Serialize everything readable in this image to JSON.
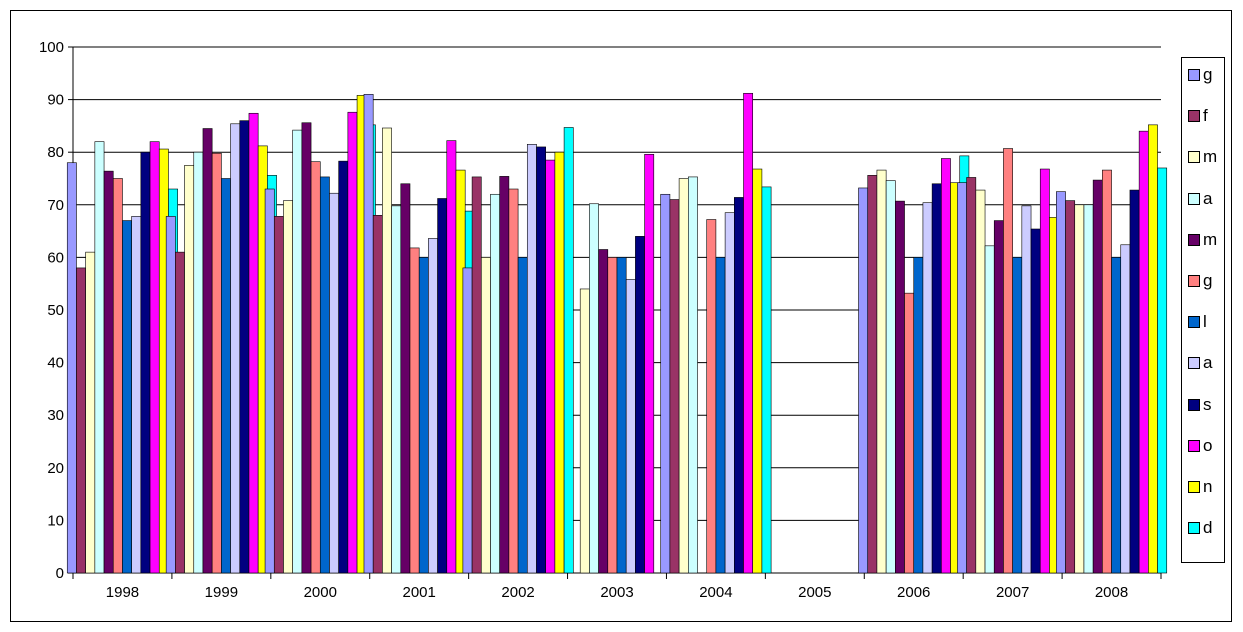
{
  "chart_data": {
    "type": "bar",
    "title": "",
    "xlabel": "",
    "ylabel": "",
    "ylim": [
      0,
      100
    ],
    "yticks": [
      "0",
      "10",
      "20",
      "30",
      "40",
      "50",
      "60",
      "70",
      "80",
      "90",
      "100"
    ],
    "grid": true,
    "legend_position": "right",
    "categories": [
      "1998",
      "1999",
      "2000",
      "2001",
      "2002",
      "2003",
      "2004",
      "2005",
      "2006",
      "2007",
      "2008"
    ],
    "series": [
      {
        "name": "g",
        "color": "#9999FF",
        "values": [
          78,
          67.8,
          73,
          91,
          58,
          null,
          72,
          null,
          73.2,
          74.2,
          72.5
        ]
      },
      {
        "name": "f",
        "color": "#993366",
        "values": [
          58,
          61,
          67.8,
          68,
          75.3,
          null,
          71,
          null,
          75.6,
          75.2,
          70.8
        ]
      },
      {
        "name": "m",
        "color": "#FFFFCC",
        "values": [
          61,
          77.5,
          70.8,
          84.6,
          60,
          54,
          75,
          null,
          76.6,
          72.8,
          70
        ]
      },
      {
        "name": "a",
        "color": "#CCFFFF",
        "values": [
          82,
          80,
          84.2,
          69.8,
          72,
          70.2,
          75.3,
          null,
          74.6,
          62.2,
          70
        ]
      },
      {
        "name": "m",
        "color": "#660066",
        "values": [
          76.4,
          84.5,
          85.6,
          74,
          75.4,
          61.5,
          null,
          null,
          70.7,
          67,
          74.7
        ]
      },
      {
        "name": "g",
        "color": "#FF8080",
        "values": [
          75,
          79.8,
          78.2,
          61.8,
          73,
          60,
          67.2,
          null,
          53.2,
          80.7,
          76.6
        ]
      },
      {
        "name": "l",
        "color": "#0066CC",
        "values": [
          67,
          75,
          75.3,
          60,
          60,
          60,
          60,
          null,
          60,
          60,
          60
        ]
      },
      {
        "name": "a",
        "color": "#CCCCFF",
        "values": [
          67.8,
          85.4,
          72.2,
          63.6,
          81.5,
          55.8,
          68.5,
          null,
          70.4,
          69.8,
          62.4
        ]
      },
      {
        "name": "s",
        "color": "#000080",
        "values": [
          80,
          86,
          78.3,
          71.2,
          81,
          64,
          71.4,
          null,
          74,
          65.4,
          72.8
        ]
      },
      {
        "name": "o",
        "color": "#FF00FF",
        "values": [
          82,
          87.4,
          87.6,
          82.2,
          78.5,
          79.6,
          91.2,
          null,
          78.8,
          76.8,
          84
        ]
      },
      {
        "name": "n",
        "color": "#FFFF00",
        "values": [
          80.6,
          81.2,
          90.8,
          76.6,
          80,
          null,
          76.8,
          null,
          74.2,
          67.6,
          85.2
        ]
      },
      {
        "name": "d",
        "color": "#00FFFF",
        "values": [
          73,
          75.6,
          85.2,
          68.8,
          84.7,
          70.2,
          73.4,
          null,
          79.3,
          58.6,
          77
        ]
      }
    ]
  }
}
